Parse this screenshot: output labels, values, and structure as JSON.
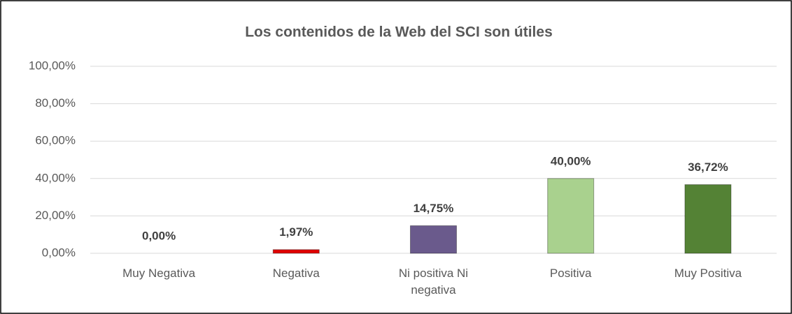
{
  "chart_data": {
    "type": "bar",
    "title": "Los contenidos de la Web del SCI son útiles",
    "categories": [
      "Muy Negativa",
      "Negativa",
      "Ni positiva Ni negativa",
      "Positiva",
      "Muy Positiva"
    ],
    "values": [
      0,
      1.97,
      14.75,
      40,
      36.72
    ],
    "value_labels": [
      "0,00%",
      "1,97%",
      "14,75%",
      "40,00%",
      "36,72%"
    ],
    "colors": [
      "#7f7f7f",
      "#e00000",
      "#6a5a8c",
      "#a9d18e",
      "#548235"
    ],
    "ylim": [
      0,
      100
    ],
    "yticks": [
      {
        "value": 0,
        "label": "0,00%"
      },
      {
        "value": 20,
        "label": "20,00%"
      },
      {
        "value": 40,
        "label": "40,00%"
      },
      {
        "value": 60,
        "label": "60,00%"
      },
      {
        "value": 80,
        "label": "80,00%"
      },
      {
        "value": 100,
        "label": "100,00%"
      }
    ],
    "grid": true
  }
}
